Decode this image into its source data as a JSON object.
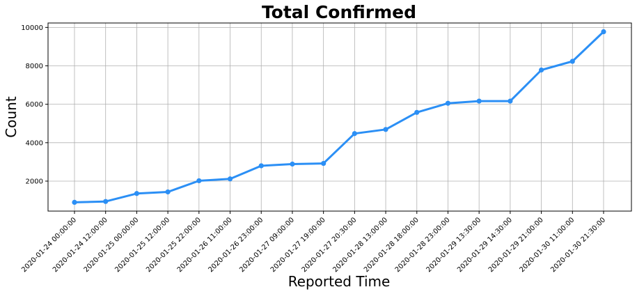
{
  "chart_data": {
    "type": "line",
    "title": "Total Confirmed",
    "xlabel": "Reported Time",
    "ylabel": "Count",
    "x": [
      "2020-01-24 00:00:00",
      "2020-01-24 12:00:00",
      "2020-01-25 00:00:00",
      "2020-01-25 12:00:00",
      "2020-01-25 22:00:00",
      "2020-01-26 11:00:00",
      "2020-01-26 23:00:00",
      "2020-01-27 09:00:00",
      "2020-01-27 19:00:00",
      "2020-01-27 20:30:00",
      "2020-01-28 13:00:00",
      "2020-01-28 18:00:00",
      "2020-01-28 23:00:00",
      "2020-01-29 13:30:00",
      "2020-01-29 14:30:00",
      "2020-01-29 21:00:00",
      "2020-01-30 11:00:00",
      "2020-01-30 21:30:00"
    ],
    "series": [
      {
        "values": [
          897,
          941,
          1355,
          1438,
          2019,
          2116,
          2798,
          2887,
          2921,
          4474,
          4690,
          5578,
          6052,
          6164,
          6165,
          7783,
          8235,
          9776
        ],
        "color": "#2b8ff5"
      }
    ],
    "yticks": [
      2000,
      4000,
      6000,
      8000,
      10000
    ],
    "ylim": [
      440,
      10230
    ],
    "grid": true,
    "legend": "none"
  }
}
